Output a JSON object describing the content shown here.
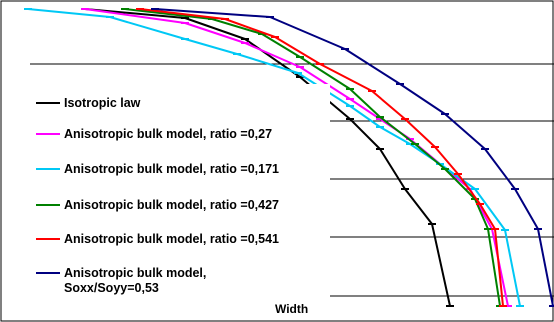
{
  "chart_data": {
    "type": "line",
    "title": "",
    "xlabel": "Width",
    "ylabel": "",
    "grid": true,
    "legend_position": "left",
    "series": [
      {
        "name": "Isotropic law",
        "color": "#000000",
        "marker": "dash",
        "points": [
          [
            85,
            0
          ],
          [
            185,
            9
          ],
          [
            245,
            30
          ],
          [
            300,
            68
          ],
          [
            350,
            110
          ],
          [
            380,
            140
          ],
          [
            405,
            180
          ],
          [
            432,
            215
          ],
          [
            450,
            297
          ]
        ]
      },
      {
        "name": "Anisotropic bulk model, ratio =0,27",
        "color": "#ff00ff",
        "marker": "dash",
        "points": [
          [
            85,
            0
          ],
          [
            185,
            14
          ],
          [
            245,
            34
          ],
          [
            300,
            58
          ],
          [
            350,
            90
          ],
          [
            380,
            110
          ],
          [
            410,
            130
          ],
          [
            440,
            155
          ],
          [
            470,
            180
          ],
          [
            492,
            220
          ],
          [
            508,
            297
          ]
        ]
      },
      {
        "name": "Anisotropic bulk model, ratio =0,171",
        "color": "#00c8f5",
        "marker": "dash",
        "points": [
          [
            28,
            0
          ],
          [
            110,
            8
          ],
          [
            185,
            30
          ],
          [
            237,
            45
          ],
          [
            298,
            64
          ],
          [
            350,
            97
          ],
          [
            380,
            118
          ],
          [
            410,
            135
          ],
          [
            440,
            155
          ],
          [
            475,
            180
          ],
          [
            505,
            221
          ],
          [
            520,
            297
          ]
        ]
      },
      {
        "name": "Anisotropic bulk model, ratio =0,427",
        "color": "#008000",
        "marker": "dash",
        "points": [
          [
            125,
            0
          ],
          [
            212,
            10
          ],
          [
            262,
            25
          ],
          [
            300,
            48
          ],
          [
            350,
            80
          ],
          [
            380,
            108
          ],
          [
            415,
            135
          ],
          [
            445,
            160
          ],
          [
            475,
            190
          ],
          [
            488,
            220
          ],
          [
            500,
            297
          ]
        ]
      },
      {
        "name": "Anisotropic bulk model, ratio =0,541",
        "color": "#ff0000",
        "marker": "dash",
        "points": [
          [
            140,
            0
          ],
          [
            225,
            10
          ],
          [
            275,
            28
          ],
          [
            320,
            55
          ],
          [
            372,
            82
          ],
          [
            405,
            110
          ],
          [
            435,
            138
          ],
          [
            458,
            165
          ],
          [
            480,
            195
          ],
          [
            495,
            220
          ],
          [
            503,
            297
          ]
        ]
      },
      {
        "name": "Anisotropic bulk model, Soxx/Soyy=0,53",
        "color": "#000080",
        "marker": "dash",
        "points": [
          [
            155,
            0
          ],
          [
            270,
            8
          ],
          [
            345,
            40
          ],
          [
            400,
            75
          ],
          [
            445,
            105
          ],
          [
            485,
            140
          ],
          [
            515,
            180
          ],
          [
            538,
            220
          ],
          [
            553,
            297
          ]
        ]
      }
    ]
  },
  "legend": {
    "items": [
      {
        "label": "Isotropic law",
        "color": "#000000"
      },
      {
        "label": "Anisotropic bulk model, ratio =0,27",
        "color": "#ff00ff"
      },
      {
        "label": "Anisotropic bulk model, ratio =0,171",
        "color": "#00c8f5"
      },
      {
        "label": "Anisotropic bulk model, ratio =0,427",
        "color": "#008000"
      },
      {
        "label": "Anisotropic bulk model, ratio =0,541",
        "color": "#ff0000"
      },
      {
        "label_line1": "Anisotropic bulk model,",
        "label_line2": "Soxx/Soyy=0,53",
        "color": "#000080"
      }
    ]
  },
  "axis": {
    "x_label": "Width"
  }
}
